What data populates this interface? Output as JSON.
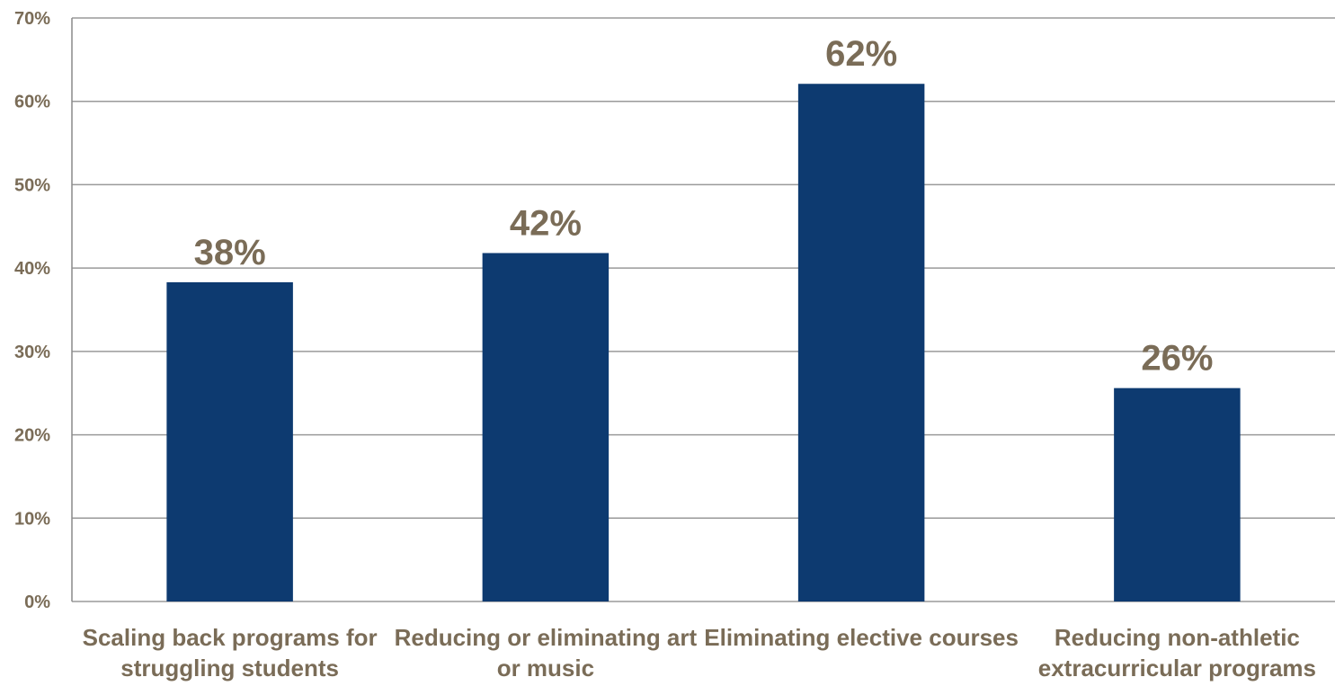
{
  "chart_data": {
    "type": "bar",
    "title": "",
    "xlabel": "",
    "ylabel": "",
    "categories": [
      [
        "Scaling back programs for",
        "struggling students"
      ],
      [
        "Reducing or eliminating art",
        "or music"
      ],
      [
        "Eliminating elective courses"
      ],
      [
        "Reducing non-athletic",
        "extracurricular programs"
      ]
    ],
    "values": [
      38.3,
      41.8,
      62.1,
      25.6
    ],
    "data_labels": [
      "38%",
      "42%",
      "62%",
      "26%"
    ],
    "ylim": [
      0,
      70
    ],
    "yticks": [
      0,
      10,
      20,
      30,
      40,
      50,
      60,
      70
    ],
    "ytick_labels": [
      "0%",
      "10%",
      "20%",
      "30%",
      "40%",
      "50%",
      "60%",
      "70%"
    ],
    "grid": true,
    "legend": "none",
    "colors": {
      "bar": "#0d3a70",
      "text": "#7a6c57",
      "grid": "#9a9a9a"
    }
  }
}
